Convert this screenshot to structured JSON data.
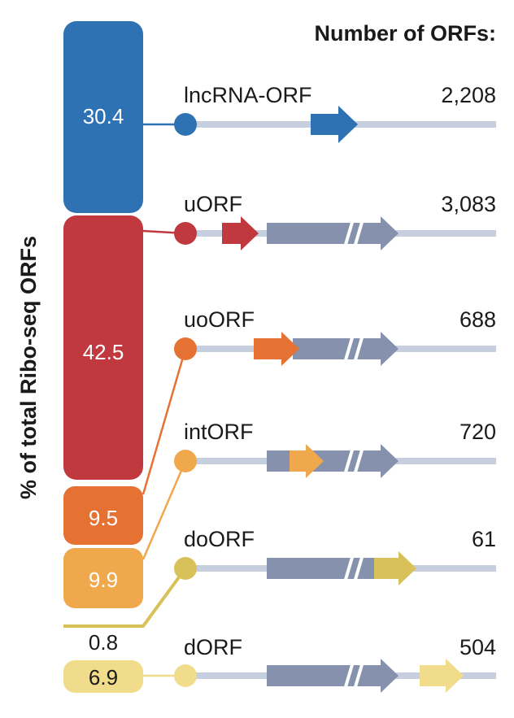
{
  "header": {
    "title": "Number of ORFs:"
  },
  "axis": {
    "ylabel": "% of total Ribo-seq ORFs"
  },
  "colors": {
    "track": "#c5cfe0",
    "gray_arrow": "#8591ad",
    "white_text": "#ffffff",
    "dark_text": "#1a1a1a"
  },
  "chart_data": {
    "type": "stacked-bar",
    "ylabel": "% of total Ribo-seq ORFs",
    "categories": [
      "lncRNA-ORF",
      "uORF",
      "uoORF",
      "intORF",
      "doORF",
      "dORF"
    ],
    "percent": [
      30.4,
      42.5,
      9.5,
      9.9,
      0.8,
      6.9
    ],
    "counts": [
      "2,208",
      "3,083",
      "688",
      "720",
      "61",
      "504"
    ],
    "colors": [
      "#2e72b3",
      "#c0393e",
      "#e57132",
      "#f0a84d",
      "#d9c15a",
      "#f0dc8a"
    ]
  },
  "segments": [
    {
      "name": "lncRNA-ORF",
      "value": "30.4",
      "count": "2,208",
      "color": "#2e72b3",
      "text_color": "#ffffff"
    },
    {
      "name": "uORF",
      "value": "42.5",
      "count": "3,083",
      "color": "#c0393e",
      "text_color": "#ffffff"
    },
    {
      "name": "uoORF",
      "value": "9.5",
      "count": "688",
      "color": "#e57132",
      "text_color": "#ffffff"
    },
    {
      "name": "intORF",
      "value": "9.9",
      "count": "720",
      "color": "#f0a84d",
      "text_color": "#ffffff"
    },
    {
      "name": "doORF",
      "value": "0.8",
      "count": "61",
      "color": "#d9c15a",
      "text_color": "#1a1a1a"
    },
    {
      "name": "dORF",
      "value": "6.9",
      "count": "504",
      "color": "#f0dc8a",
      "text_color": "#1a1a1a"
    }
  ]
}
